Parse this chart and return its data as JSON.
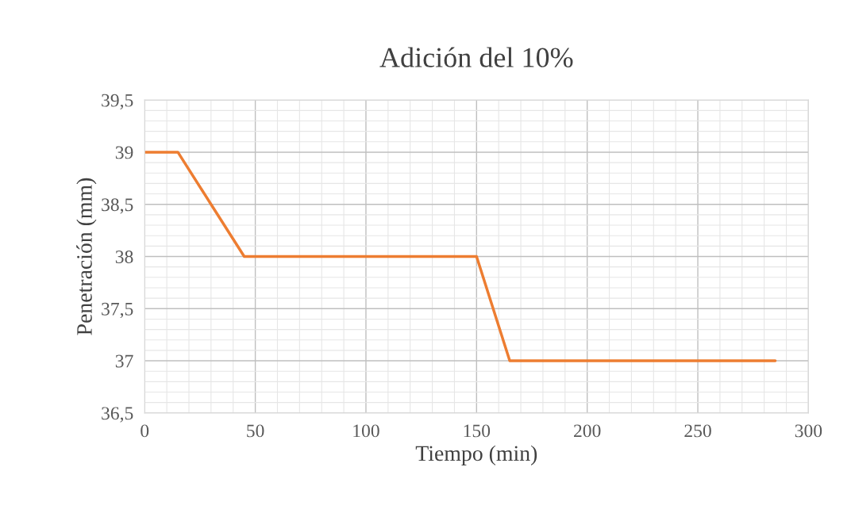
{
  "chart_data": {
    "type": "line",
    "title": "Adición del 10%",
    "xlabel": "Tiempo (min)",
    "ylabel": "Penetración (mm)",
    "x": [
      0,
      15,
      30,
      45,
      60,
      75,
      90,
      105,
      120,
      135,
      150,
      165,
      180,
      195,
      210,
      225,
      240,
      255,
      270,
      285
    ],
    "series": [
      {
        "color": "#ed7d31",
        "values": [
          39,
          39,
          38.5,
          38,
          38,
          38,
          38,
          38,
          38,
          38,
          38,
          37,
          37,
          37,
          37,
          37,
          37,
          37,
          37,
          37
        ]
      }
    ],
    "xlim": [
      0,
      300
    ],
    "xticks": [
      0,
      50,
      100,
      150,
      200,
      250,
      300
    ],
    "ylim": [
      36.5,
      39.5
    ],
    "yticks": [
      {
        "value": 36.5,
        "label": "36,5"
      },
      37,
      {
        "value": 37.5,
        "label": "37,5"
      },
      38,
      {
        "value": 38.5,
        "label": "38,5"
      },
      39,
      {
        "value": 39.5,
        "label": "39,5"
      }
    ],
    "grid": true,
    "legend": false,
    "marker": "none",
    "line_style": "solid"
  }
}
